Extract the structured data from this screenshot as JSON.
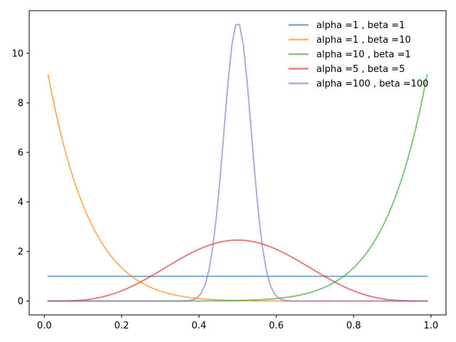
{
  "chart_data": {
    "type": "line",
    "title": "",
    "xlabel": "",
    "ylabel": "",
    "xlim": [
      -0.039,
      1.039
    ],
    "ylim": [
      -0.56,
      11.72
    ],
    "x_ticks": [
      0.0,
      0.2,
      0.4,
      0.6,
      0.8,
      1.0
    ],
    "x_tick_labels": [
      "0.0",
      "0.2",
      "0.4",
      "0.6",
      "0.8",
      "1.0"
    ],
    "y_ticks": [
      0,
      2,
      4,
      6,
      8,
      10
    ],
    "y_tick_labels": [
      "0",
      "2",
      "4",
      "6",
      "8",
      "10"
    ],
    "grid": false,
    "legend_position": "top-right",
    "x_range": [
      0.01,
      0.99
    ],
    "n_points": 100,
    "series": [
      {
        "name": "alpha =1 , beta =1",
        "alpha": 1,
        "beta": 1,
        "color": "#1f77b4"
      },
      {
        "name": "alpha =1 , beta =10",
        "alpha": 1,
        "beta": 10,
        "color": "#ff7f0e"
      },
      {
        "name": "alpha =10 , beta =1",
        "alpha": 10,
        "beta": 1,
        "color": "#2ca02c"
      },
      {
        "name": "alpha =5 , beta =5",
        "alpha": 5,
        "beta": 5,
        "color": "#d62728"
      },
      {
        "name": "alpha =100 , beta =100",
        "alpha": 100,
        "beta": 100,
        "color": "#9467bd"
      }
    ]
  }
}
